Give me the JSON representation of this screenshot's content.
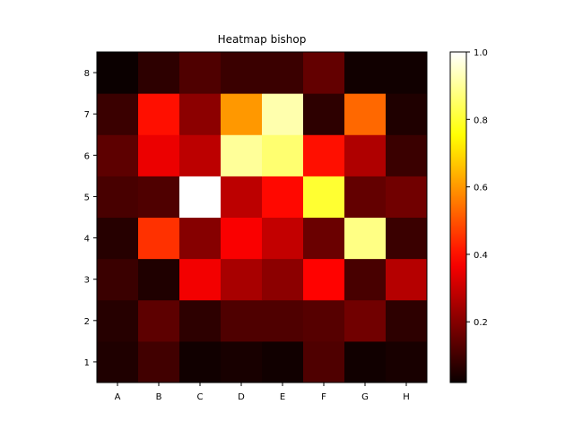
{
  "chart_data": {
    "type": "heatmap",
    "title": "Heatmap bishop",
    "xlabel": "",
    "ylabel": "",
    "x_categories": [
      "A",
      "B",
      "C",
      "D",
      "E",
      "F",
      "G",
      "H"
    ],
    "y_categories": [
      "1",
      "2",
      "3",
      "4",
      "5",
      "6",
      "7",
      "8"
    ],
    "values": [
      [
        0.05,
        0.1,
        0.03,
        0.04,
        0.03,
        0.12,
        0.03,
        0.04
      ],
      [
        0.06,
        0.14,
        0.07,
        0.12,
        0.12,
        0.13,
        0.17,
        0.07
      ],
      [
        0.09,
        0.05,
        0.36,
        0.25,
        0.21,
        0.38,
        0.11,
        0.27
      ],
      [
        0.06,
        0.45,
        0.2,
        0.37,
        0.29,
        0.16,
        0.88,
        0.09
      ],
      [
        0.11,
        0.12,
        1.0,
        0.28,
        0.39,
        0.8,
        0.15,
        0.17
      ],
      [
        0.14,
        0.35,
        0.28,
        0.9,
        0.86,
        0.4,
        0.26,
        0.09
      ],
      [
        0.09,
        0.4,
        0.21,
        0.6,
        0.92,
        0.07,
        0.53,
        0.05
      ],
      [
        0.02,
        0.07,
        0.12,
        0.09,
        0.09,
        0.15,
        0.03,
        0.03
      ]
    ],
    "colormap": "hot",
    "colorbar": {
      "min": 0.02,
      "max": 1.0,
      "ticks": [
        0.2,
        0.4,
        0.6,
        0.8,
        1.0
      ],
      "tick_labels": [
        "0.2",
        "0.4",
        "0.6",
        "0.8",
        "1.0"
      ]
    },
    "grid": false,
    "legend": "colorbar-right"
  }
}
